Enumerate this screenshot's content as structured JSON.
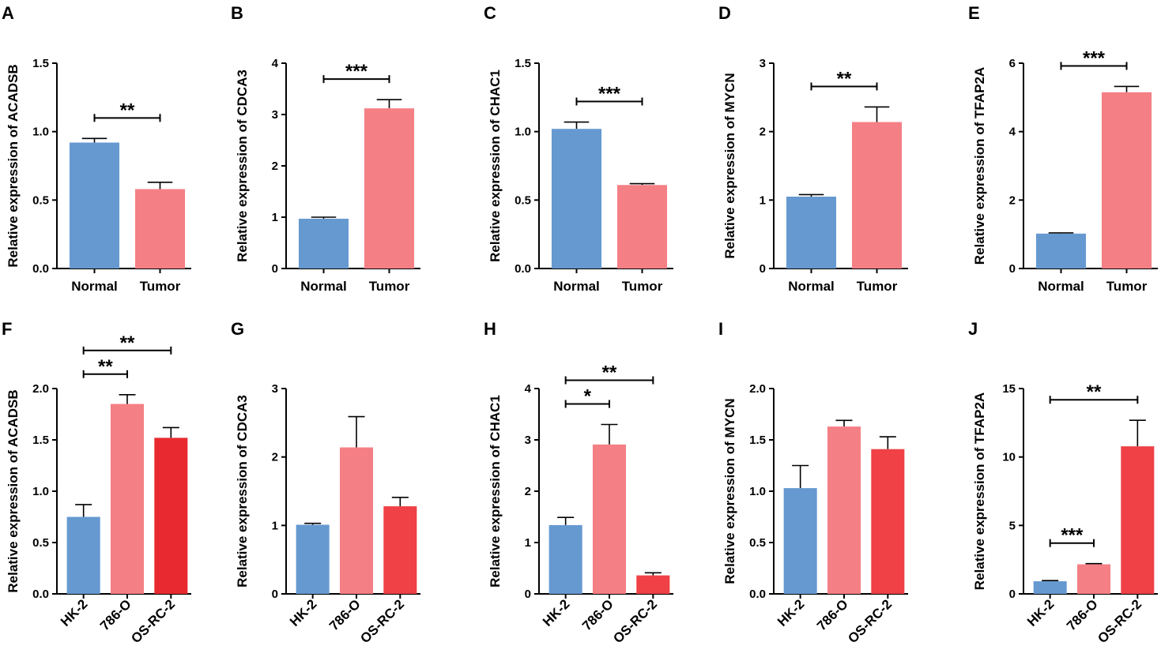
{
  "chart_data": [
    {
      "type": "bar",
      "panel": "A",
      "ylabel": "Relative expression of ACADSB",
      "categories": [
        "Normal",
        "Tumor"
      ],
      "values": [
        0.92,
        0.58
      ],
      "errors": [
        0.03,
        0.05
      ],
      "colors": [
        "#6699d0",
        "#f47f85"
      ],
      "ylim": [
        0,
        1.5
      ],
      "yticks": [
        {
          "value": 0,
          "label": "0.0"
        },
        {
          "value": 0.5,
          "label": "0.5"
        },
        {
          "value": 1,
          "label": "1.0"
        },
        {
          "value": 1.5,
          "label": "1.5"
        }
      ],
      "annotations": [
        {
          "text": "**",
          "from": 0,
          "to": 1
        }
      ]
    },
    {
      "type": "bar",
      "panel": "B",
      "ylabel": "Relative expression of CDCA3",
      "categories": [
        "Normal",
        "Tumor"
      ],
      "values": [
        0.97,
        3.12
      ],
      "errors": [
        0.03,
        0.17
      ],
      "colors": [
        "#6699d0",
        "#f47f85"
      ],
      "ylim": [
        0,
        4
      ],
      "yticks": [
        0,
        1,
        2,
        3,
        4
      ],
      "annotations": [
        {
          "text": "***",
          "from": 0,
          "to": 1
        }
      ]
    },
    {
      "type": "bar",
      "panel": "C",
      "ylabel": "Relative expression of CHAC1",
      "categories": [
        "Normal",
        "Tumor"
      ],
      "values": [
        1.02,
        0.61
      ],
      "errors": [
        0.05,
        0.01
      ],
      "colors": [
        "#6699d0",
        "#f47f85"
      ],
      "ylim": [
        0,
        1.5
      ],
      "yticks": [
        {
          "value": 0,
          "label": "0.0"
        },
        {
          "value": 0.5,
          "label": "0.5"
        },
        {
          "value": 1,
          "label": "1.0"
        },
        {
          "value": 1.5,
          "label": "1.5"
        }
      ],
      "annotations": [
        {
          "text": "***",
          "from": 0,
          "to": 1
        }
      ]
    },
    {
      "type": "bar",
      "panel": "D",
      "ylabel": "Relative expression of MYCN",
      "categories": [
        "Normal",
        "Tumor"
      ],
      "values": [
        1.05,
        2.14
      ],
      "errors": [
        0.03,
        0.22
      ],
      "colors": [
        "#6699d0",
        "#f47f85"
      ],
      "ylim": [
        0,
        3
      ],
      "yticks": [
        0,
        1,
        2,
        3
      ],
      "annotations": [
        {
          "text": "**",
          "from": 0,
          "to": 1
        }
      ]
    },
    {
      "type": "bar",
      "panel": "E",
      "ylabel": "Relative expression of TFAP2A",
      "categories": [
        "Normal",
        "Tumor"
      ],
      "values": [
        1.02,
        5.15
      ],
      "errors": [
        0.02,
        0.17
      ],
      "colors": [
        "#6699d0",
        "#f47f85"
      ],
      "ylim": [
        0,
        6
      ],
      "yticks": [
        0,
        2,
        4,
        6
      ],
      "annotations": [
        {
          "text": "***",
          "from": 0,
          "to": 1
        }
      ]
    },
    {
      "type": "bar",
      "panel": "F",
      "ylabel": "Relative expression of ACADSB",
      "categories": [
        "HK-2",
        "786-O",
        "OS-RC-2"
      ],
      "values": [
        0.75,
        1.85,
        1.52
      ],
      "errors": [
        0.12,
        0.09,
        0.1
      ],
      "colors": [
        "#6699d0",
        "#f47f85",
        "#e82a30"
      ],
      "ylim": [
        0,
        2
      ],
      "yticks": [
        {
          "value": 0,
          "label": "0.0"
        },
        {
          "value": 0.5,
          "label": "0.5"
        },
        {
          "value": 1,
          "label": "1.0"
        },
        {
          "value": 1.5,
          "label": "1.5"
        },
        {
          "value": 2,
          "label": "2.0"
        }
      ],
      "annotations": [
        {
          "text": "**",
          "from": 0,
          "to": 1
        },
        {
          "text": "**",
          "from": 0,
          "to": 2
        }
      ]
    },
    {
      "type": "bar",
      "panel": "G",
      "ylabel": "Relative expression of CDCA3",
      "categories": [
        "HK-2",
        "786-O",
        "OS-RC-2"
      ],
      "values": [
        1.01,
        2.14,
        1.28
      ],
      "errors": [
        0.02,
        0.45,
        0.13
      ],
      "colors": [
        "#6699d0",
        "#f47f85",
        "#ef4146"
      ],
      "ylim": [
        0,
        3
      ],
      "yticks": [
        0,
        1,
        2,
        3
      ],
      "annotations": []
    },
    {
      "type": "bar",
      "panel": "H",
      "ylabel": "Relative expression of CHAC1",
      "categories": [
        "HK-2",
        "786-O",
        "OS-RC-2"
      ],
      "values": [
        1.34,
        2.91,
        0.36
      ],
      "errors": [
        0.15,
        0.39,
        0.05
      ],
      "colors": [
        "#6699d0",
        "#f47f85",
        "#ef4146"
      ],
      "ylim": [
        0,
        4
      ],
      "yticks": [
        0,
        1,
        2,
        3,
        4
      ],
      "annotations": [
        {
          "text": "*",
          "from": 0,
          "to": 1
        },
        {
          "text": "**",
          "from": 0,
          "to": 2
        }
      ]
    },
    {
      "type": "bar",
      "panel": "I",
      "ylabel": "Relative expression of MYCN",
      "categories": [
        "HK-2",
        "786-O",
        "OS-RC-2"
      ],
      "values": [
        1.03,
        1.63,
        1.41
      ],
      "errors": [
        0.22,
        0.06,
        0.12
      ],
      "colors": [
        "#6699d0",
        "#f47f85",
        "#ef4146"
      ],
      "ylim": [
        0,
        2
      ],
      "yticks": [
        {
          "value": 0,
          "label": "0.0"
        },
        {
          "value": 0.5,
          "label": "0.5"
        },
        {
          "value": 1,
          "label": "1.0"
        },
        {
          "value": 1.5,
          "label": "1.5"
        },
        {
          "value": 2,
          "label": "2.0"
        }
      ],
      "annotations": []
    },
    {
      "type": "bar",
      "panel": "J",
      "ylabel": "Relative expression of TFAP2A",
      "categories": [
        "HK-2",
        "786-O",
        "OS-RC-2"
      ],
      "values": [
        0.92,
        2.16,
        10.78
      ],
      "errors": [
        0.05,
        0.05,
        1.9
      ],
      "colors": [
        "#6699d0",
        "#f47f85",
        "#ef4146"
      ],
      "ylim": [
        0,
        15
      ],
      "yticks": [
        0,
        5,
        10,
        15
      ],
      "annotations": [
        {
          "text": "***",
          "from": 0,
          "to": 1
        },
        {
          "text": "**",
          "from": 0,
          "to": 2
        }
      ]
    }
  ]
}
